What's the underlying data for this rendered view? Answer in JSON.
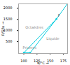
{
  "chart_data": {
    "type": "line",
    "xlabel": "θ/°C",
    "ylabel": "P/GPa",
    "xlim": [
      90,
      183
    ],
    "ylim": [
      -30,
      2200
    ],
    "xticks": [
      100,
      125,
      150,
      175
    ],
    "yticks": [
      500,
      1000,
      1500,
      2000
    ],
    "series": [
      {
        "x": [
          100,
          162
        ],
        "values": [
          0,
          1520
        ],
        "color": "#00ccdd"
      },
      {
        "x": [
          162,
          182
        ],
        "values": [
          1520,
          2180
        ],
        "color": "#00ccdd"
      },
      {
        "x": [
          112,
          162
        ],
        "values": [
          0,
          1520
        ],
        "color": "#00ccdd"
      },
      {
        "x": [
          100,
          112
        ],
        "values": [
          0,
          0
        ],
        "color": "#00ccdd"
      },
      {
        "x": [
          100,
          112
        ],
        "values": [
          0,
          0
        ],
        "color": "#00ccdd",
        "type": "scatter",
        "marker": "circle"
      },
      {
        "x": [
          162
        ],
        "values": [
          1520
        ],
        "color": "#00ccdd",
        "type": "scatter",
        "marker": "circle"
      }
    ],
    "annotations": [
      {
        "text": "F",
        "x": 162,
        "y": 1520,
        "color": "#555555"
      },
      {
        "text": "Octaèdres",
        "x": 120,
        "y": 1150,
        "color": "#888888"
      },
      {
        "text": "Prismes",
        "x": 111,
        "y": 230,
        "color": "#888888"
      },
      {
        "text": "Liquide",
        "x": 155,
        "y": 620,
        "color": "#888888"
      }
    ]
  }
}
